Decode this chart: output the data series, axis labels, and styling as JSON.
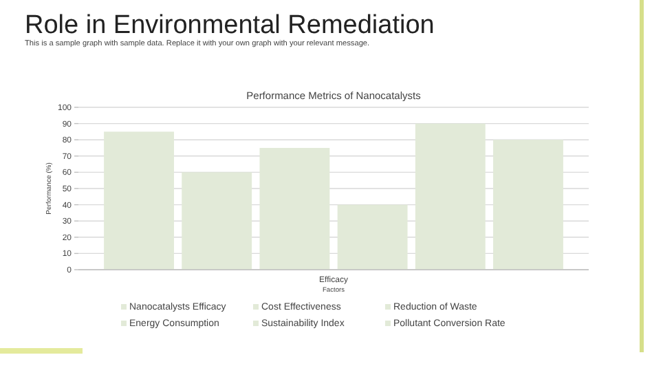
{
  "chart_data": {
    "type": "bar",
    "title": "Role in Environmental Remediation",
    "subtitle": "This is a sample graph with sample data. Replace it with your own graph with your relevant message.",
    "annotations": [
      "Performance Metrics of Nanocatalysts"
    ],
    "xlabel": "Factors",
    "ylabel": "Performance (%)",
    "categories": [
      "Efficacy"
    ],
    "series": [
      {
        "name": "Nanocatalysts Efficacy",
        "color": "#e2ead8",
        "values": [
          85
        ]
      },
      {
        "name": "Cost Effectiveness",
        "color": "#e2ead8",
        "values": [
          60
        ]
      },
      {
        "name": "Reduction of Waste",
        "color": "#e2ead8",
        "values": [
          75
        ]
      },
      {
        "name": "Energy Consumption",
        "color": "#e2ead8",
        "values": [
          40
        ]
      },
      {
        "name": "Sustainability Index",
        "color": "#e2ead8",
        "values": [
          90
        ]
      },
      {
        "name": "Pollutant Conversion Rate",
        "color": "#e2ead8",
        "values": [
          80
        ]
      }
    ],
    "ylim": [
      0,
      100
    ],
    "yticks": [
      0,
      10,
      20,
      30,
      40,
      50,
      60,
      70,
      80,
      90,
      100
    ],
    "grid": "y",
    "legend": "bottom"
  }
}
